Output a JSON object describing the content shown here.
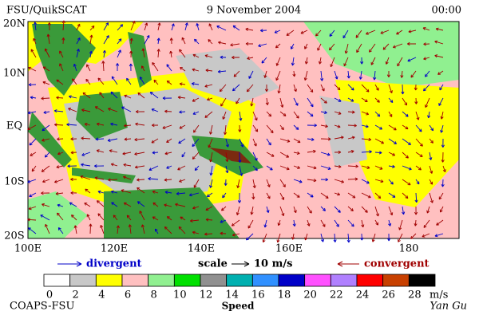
{
  "header": {
    "left": "FSU/QuikSCAT",
    "date": "9 November 2004",
    "time": "00:00"
  },
  "map": {
    "lat_labels": [
      "20N",
      "10N",
      "EQ",
      "10S",
      "20S"
    ],
    "lon_labels": [
      "100E",
      "120E",
      "140E",
      "160E",
      "180"
    ]
  },
  "legend": {
    "divergent": "divergent",
    "scale": "scale",
    "scale_value": "10 m/s",
    "convergent": "convergent"
  },
  "colorbar": {
    "ticks": [
      0,
      2,
      4,
      6,
      8,
      10,
      12,
      14,
      16,
      18,
      20,
      22,
      24,
      26,
      28
    ],
    "unit": "m/s",
    "label": "Speed",
    "colors": [
      "#ffffff",
      "#c8c8c8",
      "#ffff00",
      "#ffc0c0",
      "#90f090",
      "#00e000",
      "#909090",
      "#00b0b0",
      "#3090ff",
      "#0000c8",
      "#ff50ff",
      "#b080ff",
      "#ff0000",
      "#c84000",
      "#000000"
    ]
  },
  "footer": {
    "left": "COAPS-FSU",
    "signature": "Yan Gu"
  }
}
